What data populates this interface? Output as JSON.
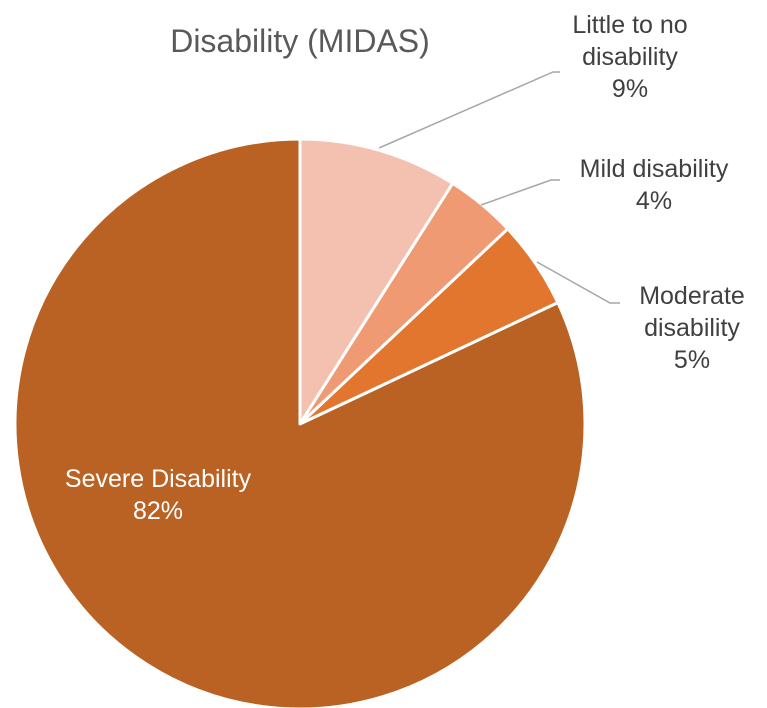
{
  "chart_data": {
    "type": "pie",
    "title": "Disability (MIDAS)",
    "start_angle_deg": 0,
    "direction": "clockwise",
    "slices": [
      {
        "name": "Little to no disability",
        "label_lines": [
          "Little to no",
          "disability"
        ],
        "percent_label": "9%",
        "value": 9,
        "color": "#F4C1B0"
      },
      {
        "name": "Mild disability",
        "label_lines": [
          "Mild disability"
        ],
        "percent_label": "4%",
        "value": 4,
        "color": "#F09A74"
      },
      {
        "name": "Moderate disability",
        "label_lines": [
          "Moderate",
          "disability"
        ],
        "percent_label": "5%",
        "value": 5,
        "color": "#E2762F"
      },
      {
        "name": "Severe Disability",
        "label_lines": [
          "Severe Disability"
        ],
        "percent_label": "82%",
        "value": 82,
        "color": "#BA6223"
      }
    ],
    "label_colors": {
      "outside": "#404040",
      "inside": "#ffffff"
    },
    "leader_line_color": "#A6A6A6",
    "legend": "none"
  }
}
